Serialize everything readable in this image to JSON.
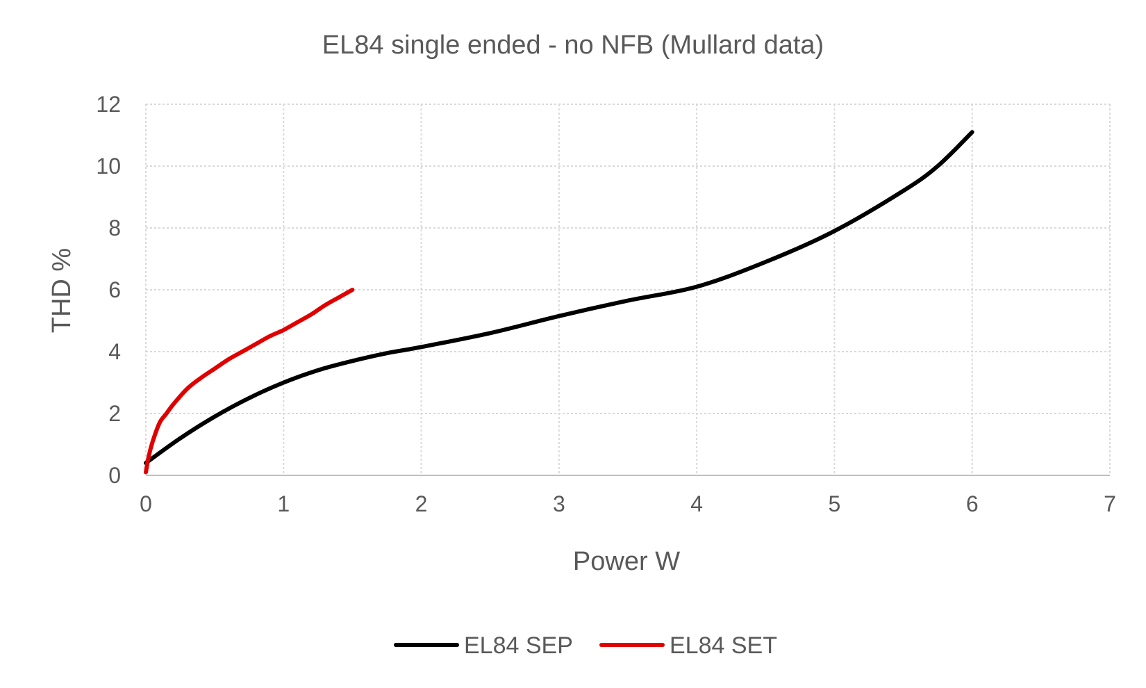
{
  "chart_data": {
    "type": "line",
    "title": "EL84 single ended - no NFB (Mullard data)",
    "xlabel": "Power W",
    "ylabel": "THD %",
    "xlim": [
      0,
      7
    ],
    "ylim": [
      0,
      12
    ],
    "xticks": [
      "0",
      "1",
      "2",
      "3",
      "4",
      "5",
      "6",
      "7"
    ],
    "yticks": [
      "0",
      "2",
      "4",
      "6",
      "8",
      "10",
      "12"
    ],
    "grid": true,
    "legend_position": "bottom",
    "series": [
      {
        "name": "EL84 SEP",
        "color": "#000000",
        "x": [
          0,
          0.25,
          0.5,
          0.75,
          1.0,
          1.25,
          1.5,
          1.75,
          2.0,
          2.5,
          3.0,
          3.5,
          4.0,
          4.5,
          5.0,
          5.5,
          5.75,
          6.0
        ],
        "y": [
          0.4,
          1.2,
          1.9,
          2.5,
          3.0,
          3.4,
          3.7,
          3.95,
          4.15,
          4.6,
          5.15,
          5.65,
          6.1,
          6.9,
          7.9,
          9.2,
          10.0,
          11.1
        ]
      },
      {
        "name": "EL84 SET",
        "color": "#e00000",
        "x": [
          0,
          0.02,
          0.05,
          0.1,
          0.15,
          0.2,
          0.3,
          0.4,
          0.5,
          0.6,
          0.7,
          0.8,
          0.9,
          1.0,
          1.1,
          1.2,
          1.3,
          1.4,
          1.5
        ],
        "y": [
          0.1,
          0.6,
          1.1,
          1.7,
          2.0,
          2.3,
          2.8,
          3.15,
          3.45,
          3.75,
          4.0,
          4.25,
          4.5,
          4.7,
          4.95,
          5.2,
          5.5,
          5.75,
          6.0
        ]
      }
    ]
  }
}
